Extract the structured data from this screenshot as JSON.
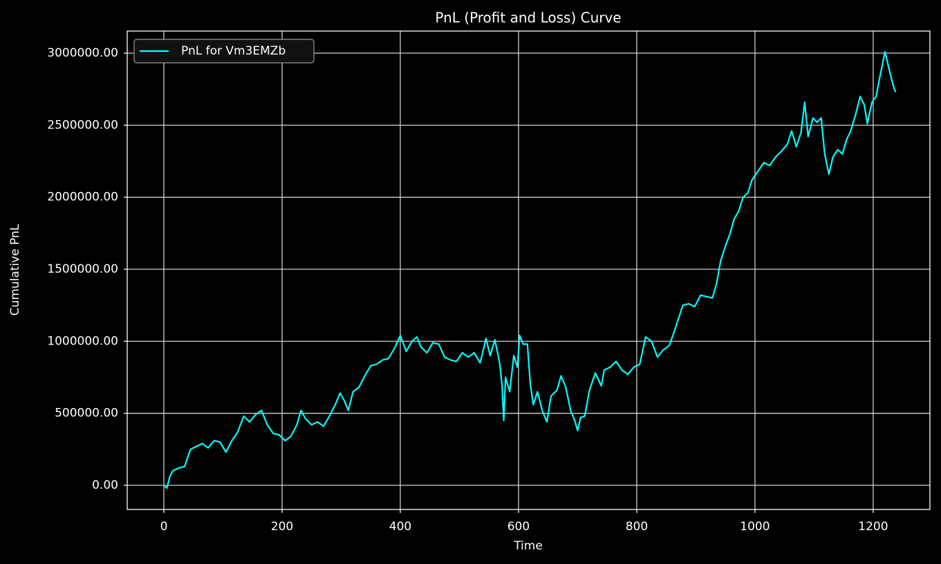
{
  "chart_data": {
    "type": "line",
    "title": "PnL (Profit and Loss) Curve",
    "x_label": "Time",
    "y_label": "Cumulative PnL",
    "xlim": [
      -62,
      1296
    ],
    "xticks": [
      0,
      200,
      400,
      600,
      800,
      1000,
      1200
    ],
    "ylim": [
      -167700,
      3153400
    ],
    "yticks": [
      {
        "value": 0,
        "label": "0.00"
      },
      {
        "value": 500000,
        "label": "500000.00"
      },
      {
        "value": 1000000,
        "label": "1000000.00"
      },
      {
        "value": 1500000,
        "label": "1500000.00"
      },
      {
        "value": 2000000,
        "label": "2000000.00"
      },
      {
        "value": 2500000,
        "label": "2500000.00"
      },
      {
        "value": 3000000,
        "label": "3000000.00"
      }
    ],
    "grid": true,
    "legend": "upper left",
    "x": [
      0,
      5,
      10,
      15,
      25,
      35,
      45,
      55,
      65,
      75,
      85,
      95,
      105,
      115,
      125,
      135,
      145,
      155,
      165,
      175,
      185,
      195,
      205,
      215,
      225,
      232,
      240,
      250,
      260,
      270,
      280,
      290,
      298,
      305,
      312,
      320,
      330,
      340,
      350,
      360,
      370,
      380,
      390,
      400,
      410,
      420,
      428,
      435,
      445,
      455,
      465,
      475,
      485,
      495,
      505,
      515,
      525,
      535,
      545,
      552,
      560,
      568,
      572,
      575,
      578,
      585,
      592,
      598,
      602,
      608,
      615,
      620,
      625,
      632,
      640,
      648,
      655,
      665,
      672,
      680,
      688,
      695,
      700,
      705,
      712,
      720,
      730,
      740,
      745,
      755,
      765,
      775,
      785,
      795,
      805,
      815,
      825,
      835,
      845,
      855,
      862,
      870,
      878,
      888,
      898,
      908,
      918,
      928,
      935,
      942,
      950,
      958,
      965,
      972,
      980,
      988,
      995,
      1005,
      1015,
      1025,
      1035,
      1045,
      1055,
      1062,
      1070,
      1078,
      1084,
      1090,
      1098,
      1105,
      1112,
      1118,
      1125,
      1132,
      1140,
      1148,
      1155,
      1162,
      1170,
      1178,
      1185,
      1190,
      1198,
      1205,
      1212,
      1220,
      1228,
      1235,
      1238
    ],
    "series": [
      {
        "name": "PnL for Vm3EMZb",
        "color": "#00ffff",
        "values": [
          0,
          -20000,
          60000,
          100000,
          120000,
          130000,
          250000,
          270000,
          290000,
          260000,
          310000,
          300000,
          230000,
          310000,
          370000,
          480000,
          440000,
          490000,
          520000,
          420000,
          360000,
          350000,
          310000,
          340000,
          420000,
          520000,
          460000,
          420000,
          440000,
          410000,
          480000,
          560000,
          640000,
          590000,
          520000,
          650000,
          680000,
          760000,
          830000,
          840000,
          870000,
          880000,
          950000,
          1040000,
          930000,
          1000000,
          1030000,
          960000,
          920000,
          990000,
          980000,
          890000,
          870000,
          860000,
          920000,
          890000,
          920000,
          850000,
          1020000,
          900000,
          1010000,
          850000,
          700000,
          450000,
          750000,
          650000,
          900000,
          820000,
          1040000,
          980000,
          980000,
          700000,
          560000,
          650000,
          520000,
          440000,
          620000,
          660000,
          760000,
          680000,
          520000,
          450000,
          380000,
          470000,
          480000,
          660000,
          780000,
          690000,
          800000,
          820000,
          860000,
          800000,
          770000,
          820000,
          840000,
          1030000,
          1000000,
          890000,
          940000,
          970000,
          1050000,
          1150000,
          1250000,
          1260000,
          1240000,
          1320000,
          1310000,
          1300000,
          1400000,
          1560000,
          1660000,
          1750000,
          1850000,
          1900000,
          2000000,
          2030000,
          2120000,
          2180000,
          2240000,
          2220000,
          2280000,
          2320000,
          2370000,
          2460000,
          2350000,
          2450000,
          2660000,
          2420000,
          2550000,
          2520000,
          2550000,
          2300000,
          2160000,
          2280000,
          2330000,
          2300000,
          2400000,
          2460000,
          2570000,
          2700000,
          2640000,
          2510000,
          2660000,
          2700000,
          2850000,
          3010000,
          2870000,
          2760000,
          2730000
        ]
      }
    ]
  }
}
